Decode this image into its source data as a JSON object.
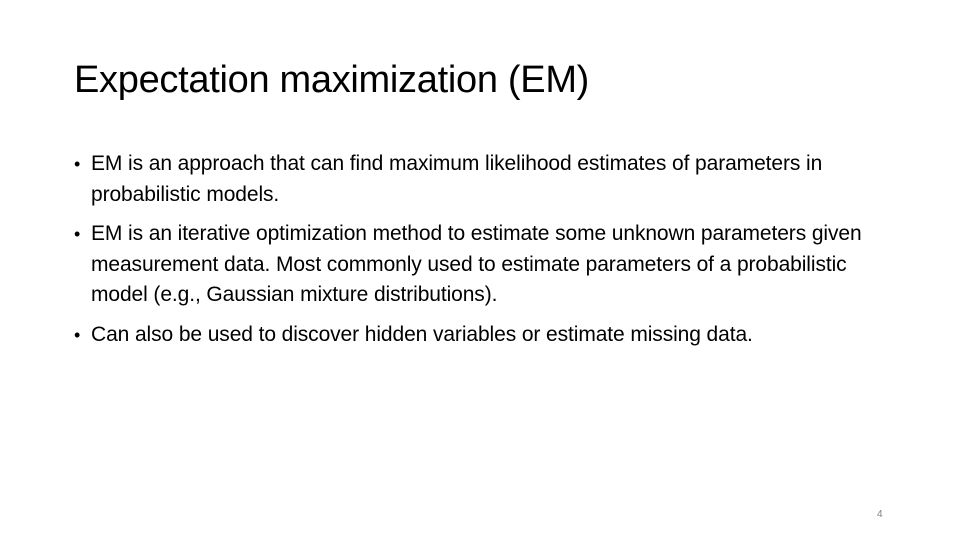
{
  "slide": {
    "title": "Expectation maximization (EM)",
    "bullets": [
      {
        "marker": "•",
        "text": "EM is an approach that can find maximum likelihood estimates of parameters in probabilistic models."
      },
      {
        "marker": "•",
        "text": "EM is an iterative optimization method to estimate some unknown parameters given measurement data.  Most commonly used to estimate parameters of a probabilistic model (e.g., Gaussian mixture distributions)."
      },
      {
        "marker": "•",
        "text": "Can also be used to discover hidden variables or estimate missing data."
      }
    ],
    "page_number": "4"
  }
}
